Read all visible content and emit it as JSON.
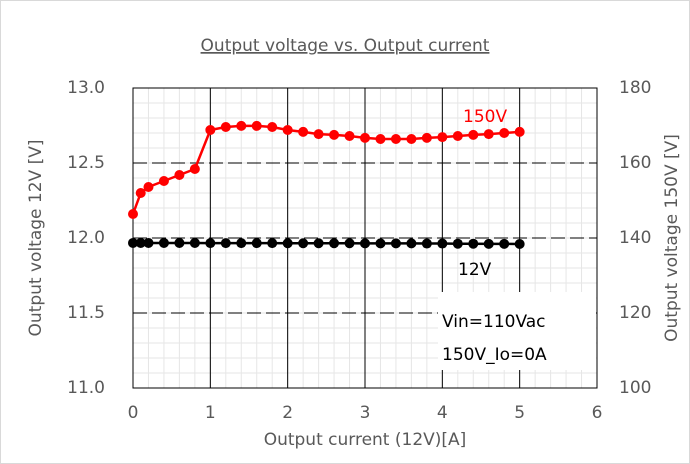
{
  "chart_data": {
    "type": "line",
    "title": "Output voltage vs. Output current",
    "x_label": "Output current (12V)[A]",
    "y_label": "Output voltage 12V [V]",
    "y2_label": "Output voltage 150V [V]",
    "x": [
      0,
      0.1,
      0.2,
      0.4,
      0.6,
      0.8,
      1.0,
      1.2,
      1.4,
      1.6,
      1.8,
      2.0,
      2.2,
      2.4,
      2.6,
      2.8,
      3.0,
      3.2,
      3.4,
      3.6,
      3.8,
      4.0,
      4.2,
      4.4,
      4.6,
      4.8,
      5.0
    ],
    "series": [
      {
        "name": "150V",
        "color": "#ff0000",
        "axis": "y2",
        "values": [
          146.4,
          152,
          153.6,
          155.2,
          156.8,
          158.4,
          168.8,
          169.6,
          169.9,
          169.9,
          169.6,
          168.8,
          168.3,
          167.7,
          167.5,
          167.2,
          166.7,
          166.4,
          166.4,
          166.4,
          166.7,
          166.9,
          167.2,
          167.5,
          167.7,
          168,
          168.3
        ]
      },
      {
        "name": "12V",
        "color": "#000000",
        "values": [
          11.967,
          11.967,
          11.967,
          11.967,
          11.967,
          11.967,
          11.966,
          11.966,
          11.966,
          11.966,
          11.966,
          11.965,
          11.965,
          11.965,
          11.965,
          11.965,
          11.964,
          11.964,
          11.964,
          11.964,
          11.963,
          11.963,
          11.962,
          11.962,
          11.961,
          11.961,
          11.96
        ]
      }
    ],
    "annotations": [
      "Vin=110Vac",
      "150V_Io=0A"
    ],
    "xlim": [
      0,
      6
    ],
    "xticks": [
      0,
      1,
      2,
      3,
      4,
      5,
      6
    ],
    "ylim": [
      11,
      13
    ],
    "yticks": [
      {
        "value": 11,
        "label": "11.0"
      },
      {
        "value": 11.5,
        "label": "11.5"
      },
      {
        "value": 12,
        "label": "12.0"
      },
      {
        "value": 12.5,
        "label": "12.5"
      },
      {
        "value": 13,
        "label": "13.0"
      }
    ],
    "y2lim": [
      100,
      180
    ],
    "y2ticks": [
      100,
      120,
      140,
      160,
      180
    ],
    "grid": true,
    "x_minor_step": 0.2,
    "y_minor_step": 0.1
  }
}
